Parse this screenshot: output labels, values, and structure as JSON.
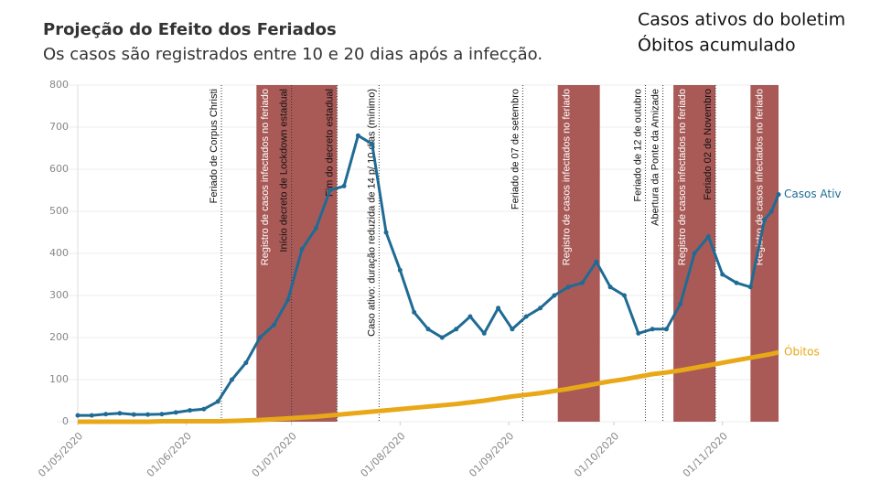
{
  "chart_data": {
    "type": "line",
    "title": "Projeção do Efeito dos Feriados",
    "subtitle": "Os casos são registrados entre 10 e 20 dias após a infecção.",
    "x": [
      "01/05/2020",
      "05/05/2020",
      "09/05/2020",
      "13/05/2020",
      "17/05/2020",
      "21/05/2020",
      "25/05/2020",
      "29/05/2020",
      "02/06/2020",
      "06/06/2020",
      "10/06/2020",
      "14/06/2020",
      "18/06/2020",
      "22/06/2020",
      "26/06/2020",
      "30/06/2020",
      "04/07/2020",
      "08/07/2020",
      "12/07/2020",
      "16/07/2020",
      "20/07/2020",
      "24/07/2020",
      "28/07/2020",
      "01/08/2020",
      "05/08/2020",
      "09/08/2020",
      "13/08/2020",
      "17/08/2020",
      "21/08/2020",
      "25/08/2020",
      "29/08/2020",
      "02/09/2020",
      "06/09/2020",
      "10/09/2020",
      "14/09/2020",
      "18/09/2020",
      "22/09/2020",
      "26/09/2020",
      "30/09/2020",
      "04/10/2020",
      "08/10/2020",
      "12/10/2020",
      "16/10/2020",
      "20/10/2020",
      "24/10/2020",
      "28/10/2020",
      "01/11/2020",
      "05/11/2020",
      "09/11/2020",
      "13/11/2020",
      "15/11/2020",
      "17/11/2020"
    ],
    "series": [
      {
        "name": "Casos ativos do boletim",
        "end_label": "Casos Ativ",
        "color": "#1f6b94",
        "values": [
          15,
          15,
          18,
          20,
          17,
          17,
          18,
          22,
          27,
          30,
          48,
          100,
          140,
          200,
          230,
          290,
          410,
          460,
          550,
          560,
          680,
          660,
          450,
          360,
          260,
          220,
          200,
          220,
          250,
          210,
          270,
          220,
          250,
          270,
          300,
          320,
          330,
          380,
          320,
          300,
          210,
          220,
          220,
          280,
          400,
          440,
          350,
          330,
          320,
          480,
          500,
          540
        ]
      },
      {
        "name": "Óbitos acumulado",
        "end_label": "Óbitos",
        "color": "#e8a817",
        "values": [
          0,
          0,
          0,
          0,
          0,
          0,
          1,
          1,
          1,
          1,
          1,
          2,
          3,
          4,
          6,
          8,
          10,
          12,
          15,
          18,
          21,
          24,
          27,
          30,
          33,
          36,
          39,
          42,
          46,
          50,
          55,
          60,
          64,
          68,
          73,
          78,
          84,
          90,
          96,
          101,
          107,
          113,
          117,
          122,
          128,
          134,
          140,
          146,
          152,
          158,
          161,
          165
        ]
      }
    ],
    "xlim": [
      "25/04/2020",
      "17/11/2020"
    ],
    "xticks": [
      "01/05/2020",
      "01/06/2020",
      "01/07/2020",
      "01/08/2020",
      "01/09/2020",
      "01/10/2020",
      "01/11/2020"
    ],
    "ylim": [
      0,
      800
    ],
    "yticks": [
      0,
      100,
      200,
      300,
      400,
      500,
      600,
      700,
      800
    ],
    "grid": true,
    "band_color": "#a95a57",
    "bands": [
      {
        "start": "21/06/2020",
        "end": "14/07/2020",
        "label": "Registro de casos infectados no feriado"
      },
      {
        "start": "15/09/2020",
        "end": "27/09/2020",
        "label": "Registro de casos infectados no feriado"
      },
      {
        "start": "18/10/2020",
        "end": "30/10/2020",
        "label": "Registro de casos infectados no feriado"
      },
      {
        "start": "09/11/2020",
        "end": "17/11/2020",
        "label": "Registro de casos infectados no feriado"
      }
    ],
    "annotations": [
      {
        "x": "11/06/2020",
        "text": "Feriado de Corpus Christi"
      },
      {
        "x": "01/07/2020",
        "text": "Início decreto de Lockdown estadual"
      },
      {
        "x": "14/07/2020",
        "text": "Fim do decreto estadual"
      },
      {
        "x": "26/07/2020",
        "text": "Caso ativo: duração reduzida de 14 p/ 10 dias (mínimo)"
      },
      {
        "x": "05/09/2020",
        "text": "Feriado de 07 de setembro"
      },
      {
        "x": "10/10/2020",
        "text": "Feriado de 12 de outubro"
      },
      {
        "x": "15/10/2020",
        "text": "Abertura da Ponte da Amizade"
      },
      {
        "x": "30/10/2020",
        "text": "Feriado 02 de Novembro"
      }
    ]
  }
}
